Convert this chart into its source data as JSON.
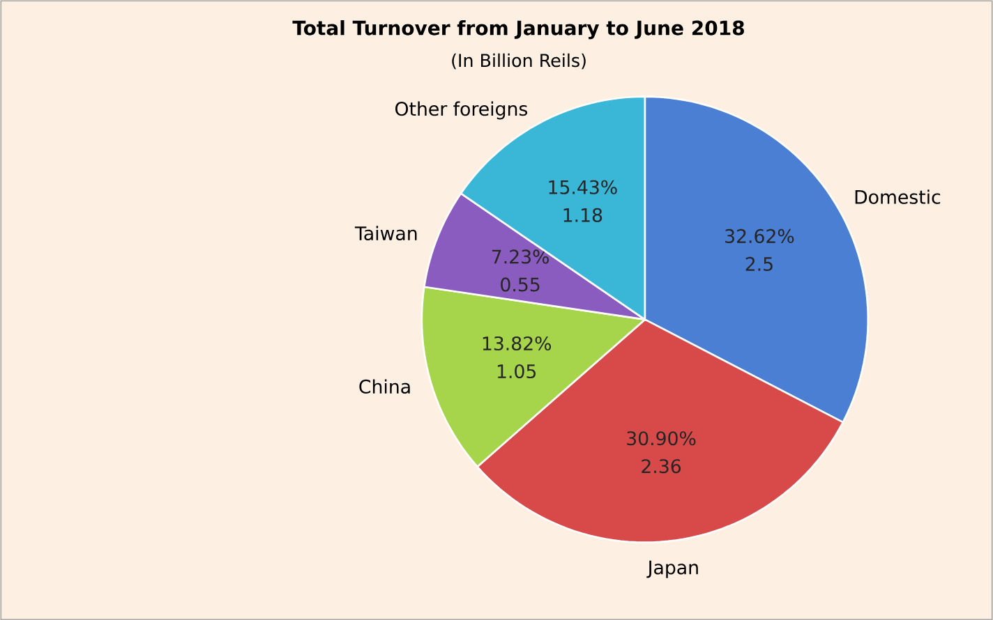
{
  "chart_data": {
    "type": "pie",
    "title": "Total Turnover from January to June 2018",
    "subtitle": "(In Billion Reils)",
    "categories": [
      "Domestic",
      "Japan",
      "China",
      "Taiwan",
      "Other foreigns"
    ],
    "values": [
      32.62,
      30.9,
      13.82,
      7.23,
      15.43
    ],
    "colors": [
      "#4a7fd4",
      "#d84a4a",
      "#a6d44a",
      "#8a5cbf",
      "#3ab6d6"
    ],
    "value_labels": [
      "32.62%",
      "30.90%",
      "13.82%",
      "7.23%",
      "15.43%"
    ],
    "annotations": [
      "2.5",
      "2.36",
      "1.05",
      "0.55",
      "1.18"
    ]
  }
}
